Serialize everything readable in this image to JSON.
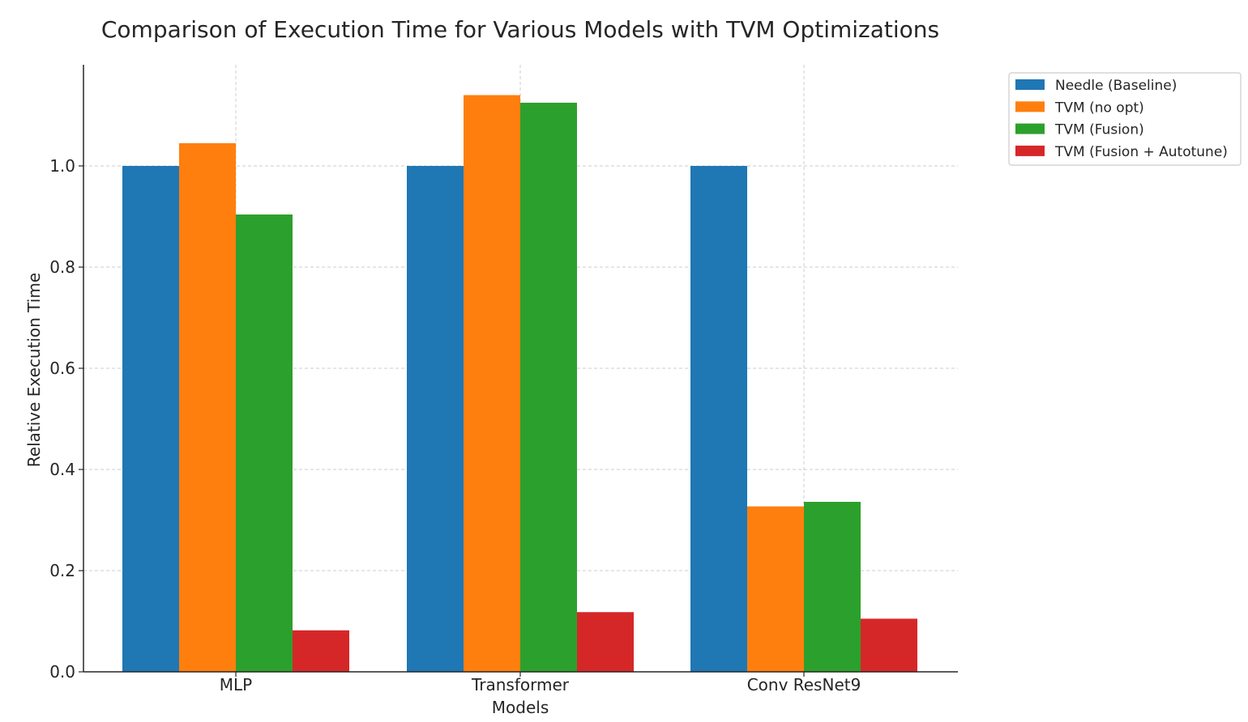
{
  "chart_data": {
    "type": "bar",
    "title": "Comparison of Execution Time for Various Models with TVM Optimizations",
    "xlabel": "Models",
    "ylabel": "Relative Execution Time",
    "categories": [
      "MLP",
      "Transformer",
      "Conv ResNet9"
    ],
    "series": [
      {
        "name": "Needle (Baseline)",
        "color": "#1f77b4",
        "values": [
          1.0,
          1.0,
          1.0
        ]
      },
      {
        "name": "TVM (no opt)",
        "color": "#ff7f0e",
        "values": [
          1.045,
          1.14,
          0.327
        ]
      },
      {
        "name": "TVM (Fusion)",
        "color": "#2ca02c",
        "values": [
          0.904,
          1.125,
          0.336
        ]
      },
      {
        "name": "TVM (Fusion + Autotune)",
        "color": "#d62728",
        "values": [
          0.082,
          0.118,
          0.105
        ]
      }
    ],
    "ylim": [
      0,
      1.2
    ],
    "yticks": [
      "0.0",
      "0.2",
      "0.4",
      "0.6",
      "0.8",
      "1.0"
    ],
    "grid": true,
    "legend_position": "outside-top-right"
  }
}
